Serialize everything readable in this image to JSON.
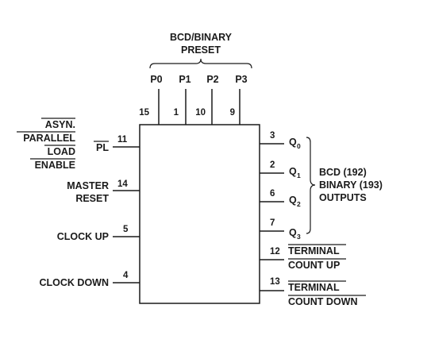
{
  "preset_group": {
    "line1": "BCD/BINARY",
    "line2": "PRESET"
  },
  "preset_pins": [
    {
      "name": "P0",
      "number": "15"
    },
    {
      "name": "P1",
      "number": "1"
    },
    {
      "name": "P2",
      "number": "10"
    },
    {
      "name": "P3",
      "number": "9"
    }
  ],
  "inputs": {
    "pl": {
      "name": "PL",
      "number": "11",
      "desc": [
        "ASYN.",
        "PARALLEL",
        "LOAD",
        "ENABLE"
      ]
    },
    "master_reset": {
      "line1": "MASTER",
      "line2": "RESET",
      "number": "14"
    },
    "clock_up": {
      "label": "CLOCK UP",
      "number": "5"
    },
    "clock_down": {
      "label": "CLOCK DOWN",
      "number": "4"
    }
  },
  "q_outputs": [
    {
      "letter": "Q",
      "sub": "0",
      "number": "3"
    },
    {
      "letter": "Q",
      "sub": "1",
      "number": "2"
    },
    {
      "letter": "Q",
      "sub": "2",
      "number": "6"
    },
    {
      "letter": "Q",
      "sub": "3",
      "number": "7"
    }
  ],
  "outputs_group": {
    "line1": "BCD (192)",
    "line2": "BINARY (193)",
    "line3": "OUTPUTS"
  },
  "terminal_count_up": {
    "number": "12",
    "line1": "TERMINAL",
    "line2": "COUNT UP"
  },
  "terminal_count_down": {
    "number": "13",
    "line1": "TERMINAL",
    "line2": "COUNT DOWN"
  }
}
